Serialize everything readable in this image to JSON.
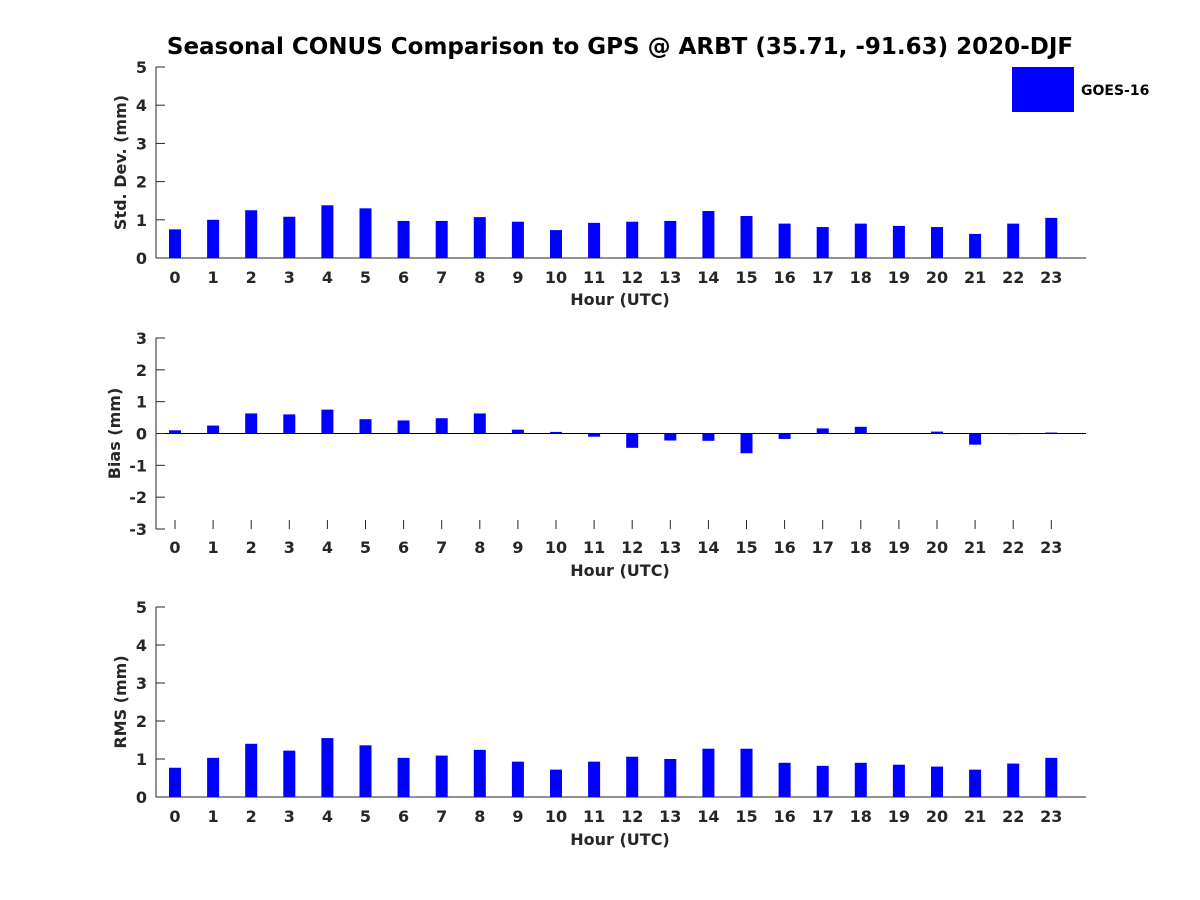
{
  "title": "Seasonal CONUS Comparison to GPS @ ARBT (35.71, -91.63) 2020-DJF",
  "colors": {
    "bar": "#0000ff",
    "axis": "#262626",
    "zero_line": "#000000"
  },
  "legend": {
    "label": "GOES-16",
    "placement": "top-right"
  },
  "chart_data": [
    {
      "type": "bar",
      "series": [
        {
          "name": "GOES-16",
          "values": [
            0.75,
            1.0,
            1.25,
            1.08,
            1.38,
            1.3,
            0.97,
            0.97,
            1.07,
            0.95,
            0.73,
            0.92,
            0.95,
            0.97,
            1.23,
            1.1,
            0.9,
            0.81,
            0.9,
            0.84,
            0.81,
            0.63,
            0.9,
            1.05
          ]
        }
      ],
      "categories": [
        "0",
        "1",
        "2",
        "3",
        "4",
        "5",
        "6",
        "7",
        "8",
        "9",
        "10",
        "11",
        "12",
        "13",
        "14",
        "15",
        "16",
        "17",
        "18",
        "19",
        "20",
        "21",
        "22",
        "23"
      ],
      "xlabel": "Hour (UTC)",
      "ylabel": "Std. Dev. (mm)",
      "ylim": [
        0,
        5
      ],
      "yticks": [
        "0",
        "1",
        "2",
        "3",
        "4",
        "5"
      ],
      "grid": false
    },
    {
      "type": "bar",
      "series": [
        {
          "name": "GOES-16",
          "values": [
            0.1,
            0.25,
            0.63,
            0.6,
            0.75,
            0.45,
            0.41,
            0.48,
            0.63,
            0.12,
            0.05,
            -0.1,
            -0.45,
            -0.22,
            -0.23,
            -0.62,
            -0.17,
            0.16,
            0.21,
            0.0,
            0.06,
            -0.35,
            -0.02,
            0.03
          ]
        }
      ],
      "categories": [
        "0",
        "1",
        "2",
        "3",
        "4",
        "5",
        "6",
        "7",
        "8",
        "9",
        "10",
        "11",
        "12",
        "13",
        "14",
        "15",
        "16",
        "17",
        "18",
        "19",
        "20",
        "21",
        "22",
        "23"
      ],
      "xlabel": "Hour (UTC)",
      "ylabel": "Bias (mm)",
      "ylim": [
        -3,
        3
      ],
      "yticks": [
        "-3",
        "-2",
        "-1",
        "0",
        "1",
        "2",
        "3"
      ],
      "grid": false
    },
    {
      "type": "bar",
      "series": [
        {
          "name": "GOES-16",
          "values": [
            0.77,
            1.03,
            1.4,
            1.22,
            1.55,
            1.36,
            1.03,
            1.09,
            1.24,
            0.93,
            0.72,
            0.93,
            1.06,
            1.0,
            1.27,
            1.27,
            0.9,
            0.82,
            0.9,
            0.85,
            0.8,
            0.72,
            0.88,
            1.03
          ]
        }
      ],
      "categories": [
        "0",
        "1",
        "2",
        "3",
        "4",
        "5",
        "6",
        "7",
        "8",
        "9",
        "10",
        "11",
        "12",
        "13",
        "14",
        "15",
        "16",
        "17",
        "18",
        "19",
        "20",
        "21",
        "22",
        "23"
      ],
      "xlabel": "Hour (UTC)",
      "ylabel": "RMS (mm)",
      "ylim": [
        0,
        5
      ],
      "yticks": [
        "0",
        "1",
        "2",
        "3",
        "4",
        "5"
      ],
      "grid": false
    }
  ]
}
